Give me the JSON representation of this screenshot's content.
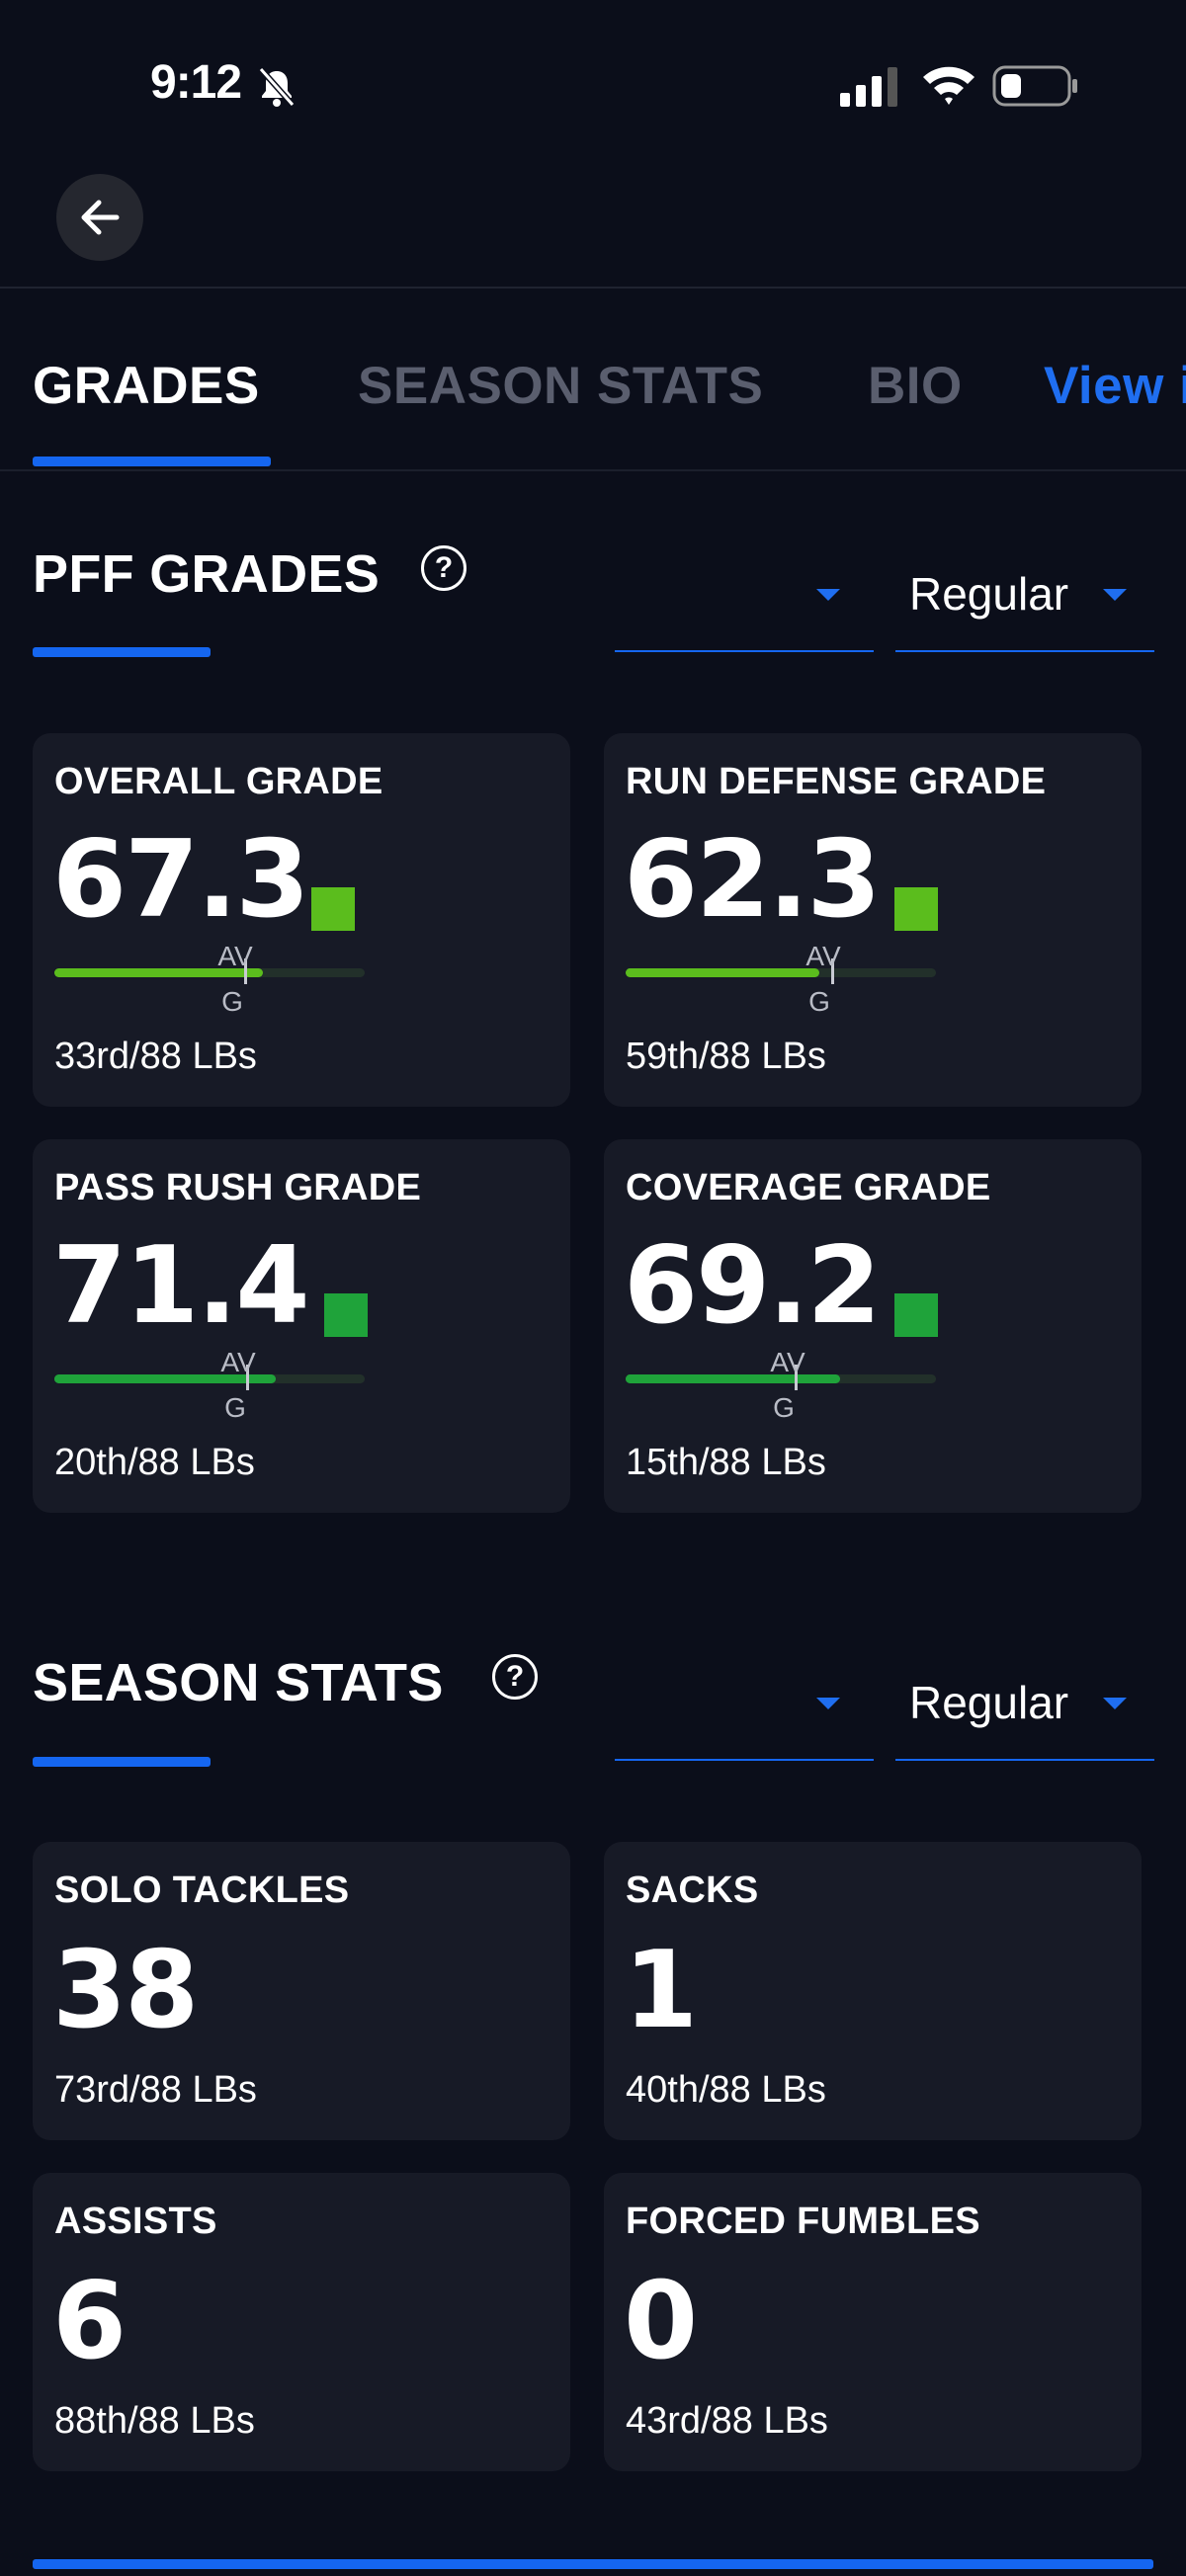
{
  "status_bar": {
    "time": "9:12"
  },
  "tabs": {
    "grades": "GRADES",
    "season_stats": "SEASON STATS",
    "bio": "BIO",
    "view": "View i"
  },
  "pff_grades": {
    "title": "PFF GRADES",
    "help": "?",
    "dropdown_1": "",
    "dropdown_2": "Regular",
    "cards": [
      {
        "label": "OVERALL GRADE",
        "value": "67.3",
        "rank": "33rd/88 LBs",
        "avg_label_1": "AV",
        "avg_label_2": "G",
        "grade_fraction": 0.673,
        "color": "#5bbd1d"
      },
      {
        "label": "RUN DEFENSE GRADE",
        "value": "62.3",
        "rank": "59th/88 LBs",
        "avg_label_1": "AV",
        "avg_label_2": "G",
        "grade_fraction": 0.623,
        "color": "#5bbd1d"
      },
      {
        "label": "PASS RUSH GRADE",
        "value": "71.4",
        "rank": "20th/88 LBs",
        "avg_label_1": "AV",
        "avg_label_2": "G",
        "grade_fraction": 0.714,
        "color": "#1fa33a"
      },
      {
        "label": "COVERAGE GRADE",
        "value": "69.2",
        "rank": "15th/88 LBs",
        "avg_label_1": "AV",
        "avg_label_2": "G",
        "grade_fraction": 0.692,
        "color": "#1fa33a"
      }
    ]
  },
  "season_stats": {
    "title": "SEASON STATS",
    "help": "?",
    "dropdown_1": "",
    "dropdown_2": "Regular",
    "cards": [
      {
        "label": "SOLO TACKLES",
        "value": "38",
        "rank": "73rd/88 LBs"
      },
      {
        "label": "SACKS",
        "value": "1",
        "rank": "40th/88 LBs"
      },
      {
        "label": "ASSISTS",
        "value": "6",
        "rank": "88th/88 LBs"
      },
      {
        "label": "FORCED FUMBLES",
        "value": "0",
        "rank": "43rd/88 LBs"
      }
    ]
  },
  "colors": {
    "accent": "#1566f0",
    "background": "#0b0e1a",
    "card": "#171a26"
  }
}
